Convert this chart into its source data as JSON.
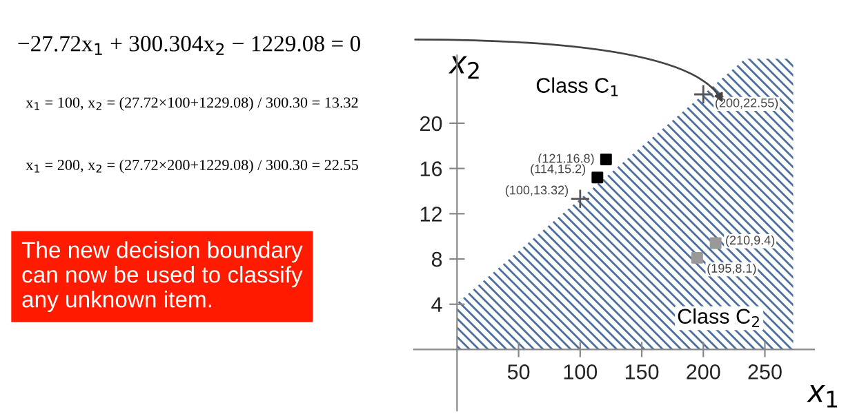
{
  "chart_data": {
    "type": "scatter",
    "xlabel": "x$_{1}$",
    "ylabel": "x$_{2}$",
    "xlim": [
      -35,
      290
    ],
    "ylim": [
      -5.4,
      26
    ],
    "xticks": [
      50,
      100,
      150,
      200,
      250
    ],
    "yticks": [
      4,
      8,
      12,
      16,
      20
    ],
    "grid": false,
    "legend": false,
    "series": [
      {
        "type": "area",
        "color": "#4a6fa0",
        "x": [
          0,
          100,
          200,
          234,
          273
        ],
        "values": [
          4.09,
          13.32,
          22.55,
          25.7,
          25.7
        ]
      },
      {
        "type": "scatter",
        "marker": "cross",
        "color": "#555555",
        "x": [
          100,
          200
        ],
        "values": [
          13.32,
          22.55
        ]
      },
      {
        "marker": "square",
        "color": "#000000",
        "x": [
          121,
          114
        ],
        "values": [
          16.8,
          15.2
        ]
      },
      {
        "marker": "square",
        "color": "#999999",
        "x": [
          210,
          195
        ],
        "values": [
          9.4,
          8.1
        ]
      }
    ],
    "annotations": [
      "−27.72x$_{1}$ + 300.304x$_{2}$ − 1229.08 = 0",
      "x$_{1}$ = 100, x$_{2}$ = (27.72×100+1229.08) / 300.30 = 13.32",
      "x$_{1}$ = 200, x$_{2}$ = (27.72×200+1229.08) / 300.30 = 22.55",
      "The new decision boundary\ncan now be used to classify\nany unknown item.",
      "Class C$_{1}$",
      "Class C$_{2}$",
      {
        "text": "(121,16.8)",
        "x": 121,
        "y": 16.8
      },
      {
        "text": "(114,15.2)",
        "x": 114,
        "y": 15.2
      },
      {
        "text": "(100,13.32)",
        "x": 100,
        "y": 13.32
      },
      {
        "text": "(200,22.55)",
        "x": 200,
        "y": 22.55
      },
      {
        "text": "(210,9.4)",
        "x": 210,
        "y": 9.4
      },
      {
        "text": "(195,8.1)",
        "x": 195,
        "y": 8.1
      }
    ]
  }
}
